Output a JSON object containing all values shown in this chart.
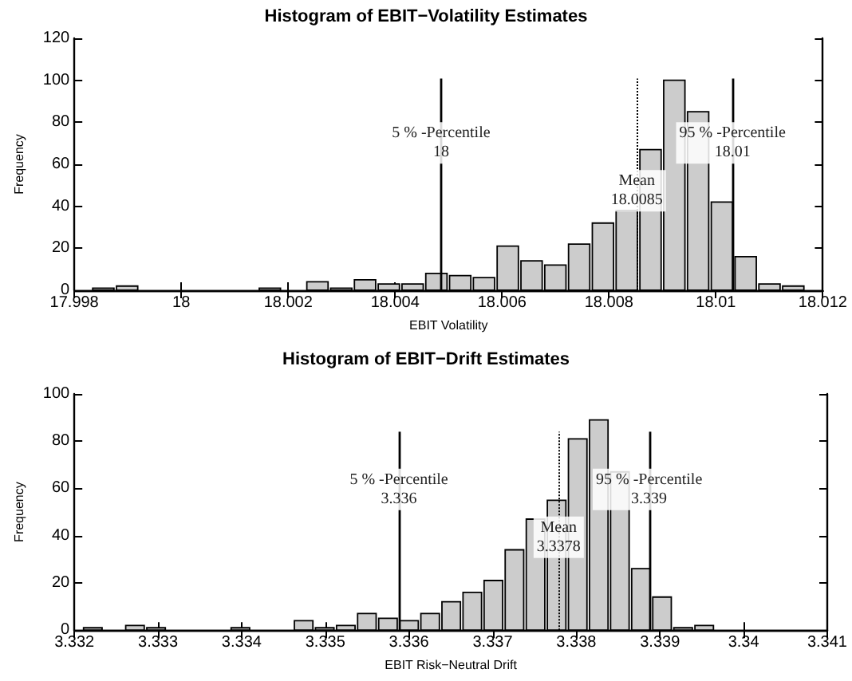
{
  "chart_data": [
    {
      "type": "histogram",
      "title": "Histogram of EBIT−Volatility Estimates",
      "xlabel": "EBIT Volatility",
      "ylabel": "Frequency",
      "bins": [
        17.99832,
        17.998765,
        17.99921,
        17.999655,
        18.0001,
        18.000545,
        18.00099,
        18.001435,
        18.00188,
        18.002325,
        18.00277,
        18.003215,
        18.00366,
        18.004105,
        18.00455,
        18.004995,
        18.00544,
        18.005885,
        18.00633,
        18.006775,
        18.00722,
        18.007665,
        18.00811,
        18.008555,
        18.009,
        18.009445,
        18.00989,
        18.010335,
        18.01078,
        18.011225,
        18.01167
      ],
      "values": [
        1,
        2,
        0,
        0,
        0,
        0,
        0,
        1,
        0,
        4,
        1,
        5,
        3,
        3,
        8,
        7,
        6,
        21,
        14,
        12,
        22,
        32,
        38,
        67,
        100,
        85,
        42,
        16,
        3,
        2
      ],
      "color": "#cccccc",
      "xlim": [
        17.998,
        18.012
      ],
      "xticks": [
        17.998,
        18,
        18.002,
        18.004,
        18.006,
        18.008,
        18.01,
        18.012
      ],
      "ylim": [
        0,
        120
      ],
      "yticks": [
        0,
        20,
        40,
        60,
        80,
        100,
        120
      ],
      "grid": false,
      "ref_lines": [
        {
          "axis": "x",
          "value": 18.00486,
          "label": "5 % -Percentile\n18",
          "line_style": "solid",
          "color": "#000000"
        },
        {
          "axis": "x",
          "value": 18.00852,
          "label": "Mean\n18.0085",
          "line_style": "dotted",
          "color": "#000000"
        },
        {
          "axis": "x",
          "value": 18.01031,
          "label": "95 % -Percentile\n18.01",
          "line_style": "solid",
          "color": "#000000"
        }
      ]
    },
    {
      "type": "histogram",
      "title": "Histogram of EBIT−Drift Estimates",
      "xlabel": "EBIT Risk−Neutral Drift",
      "ylabel": "Frequency",
      "bins": [
        3.332095,
        3.332347,
        3.332599,
        3.332851,
        3.333103,
        3.333355,
        3.333607,
        3.333859,
        3.334111,
        3.334363,
        3.334615,
        3.334867,
        3.335119,
        3.335371,
        3.335623,
        3.335875,
        3.336127,
        3.336379,
        3.336631,
        3.336883,
        3.337135,
        3.337387,
        3.337639,
        3.337891,
        3.338143,
        3.338395,
        3.338647,
        3.338899,
        3.339151,
        3.339403,
        3.339655
      ],
      "values": [
        1,
        0,
        2,
        1,
        0,
        0,
        0,
        1,
        0,
        0,
        4,
        1,
        2,
        7,
        5,
        4,
        7,
        12,
        16,
        21,
        34,
        47,
        55,
        81,
        89,
        67,
        26,
        14,
        1,
        2
      ],
      "color": "#cccccc",
      "xlim": [
        3.332,
        3.341
      ],
      "xticks": [
        3.332,
        3.333,
        3.334,
        3.335,
        3.336,
        3.337,
        3.338,
        3.339,
        3.34,
        3.341
      ],
      "ylim": [
        0,
        100
      ],
      "yticks": [
        0,
        20,
        40,
        60,
        80,
        100
      ],
      "grid": false,
      "ref_lines": [
        {
          "axis": "x",
          "value": 3.33588,
          "label": "5 % -Percentile\n3.336",
          "line_style": "solid",
          "color": "#000000"
        },
        {
          "axis": "x",
          "value": 3.33779,
          "label": "Mean\n3.3378",
          "line_style": "dotted",
          "color": "#000000"
        },
        {
          "axis": "x",
          "value": 3.33887,
          "label": "95 % -Percentile\n3.339",
          "line_style": "solid",
          "color": "#000000"
        }
      ]
    }
  ]
}
